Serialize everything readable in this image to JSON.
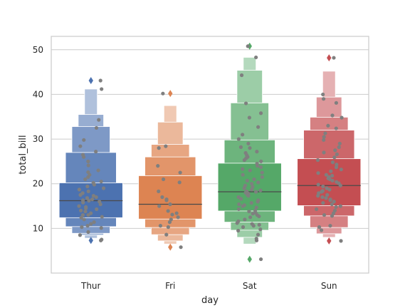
{
  "chart_data": {
    "type": "boxen",
    "xlabel": "day",
    "ylabel": "total_bill",
    "ylim": [
      0,
      53
    ],
    "yticks": [
      10,
      20,
      30,
      40,
      50
    ],
    "grid": "horizontal",
    "categories": [
      "Thur",
      "Fri",
      "Sat",
      "Sun"
    ],
    "colors": [
      "#4C72B0",
      "#DD8452",
      "#55A868",
      "#C44E52"
    ],
    "point_color": "#7f7f7f",
    "groups": [
      {
        "category": "Thur",
        "median": 16.2,
        "boxes": [
          {
            "low": 12.4,
            "high": 20.2
          },
          {
            "low": 10.4,
            "high": 27.0
          },
          {
            "low": 8.9,
            "high": 32.8
          },
          {
            "low": 8.5,
            "high": 35.5
          },
          {
            "low": 7.8,
            "high": 41.2
          }
        ],
        "outliers": [
          7.3,
          43.1
        ],
        "points": [
          7.3,
          7.5,
          8.5,
          9.2,
          10.1,
          10.3,
          10.6,
          11.0,
          11.4,
          12.0,
          12.4,
          12.6,
          13.0,
          13.0,
          13.4,
          13.8,
          14.0,
          14.3,
          14.5,
          14.8,
          15.0,
          15.4,
          15.8,
          16.0,
          16.2,
          16.3,
          16.5,
          16.8,
          17.0,
          17.3,
          17.5,
          17.9,
          18.3,
          18.7,
          19.0,
          19.4,
          19.8,
          20.2,
          20.5,
          21.0,
          21.5,
          22.0,
          22.6,
          23.0,
          24.1,
          25.0,
          26.0,
          26.5,
          27.2,
          28.4,
          29.8,
          32.5,
          34.3,
          41.2,
          43.1
        ]
      },
      {
        "category": "Fri",
        "median": 15.4,
        "boxes": [
          {
            "low": 12.1,
            "high": 21.8
          },
          {
            "low": 10.2,
            "high": 26.0
          },
          {
            "low": 8.6,
            "high": 28.8
          },
          {
            "low": 7.2,
            "high": 33.8
          },
          {
            "low": 6.5,
            "high": 37.5
          }
        ],
        "outliers": [
          5.8,
          40.2
        ],
        "points": [
          5.8,
          8.6,
          10.3,
          10.6,
          11.4,
          12.0,
          12.5,
          13.1,
          13.4,
          13.9,
          15.0,
          15.4,
          16.3,
          16.5,
          17.0,
          18.3,
          20.3,
          21.0,
          22.5,
          24.0,
          28.0,
          28.4,
          40.2
        ]
      },
      {
        "category": "Sat",
        "median": 18.2,
        "boxes": [
          {
            "low": 13.9,
            "high": 24.6
          },
          {
            "low": 11.4,
            "high": 29.8
          },
          {
            "low": 9.6,
            "high": 38.1
          },
          {
            "low": 8.0,
            "high": 45.4
          },
          {
            "low": 6.5,
            "high": 48.3
          }
        ],
        "outliers": [
          3.1,
          50.8
        ],
        "points": [
          3.1,
          7.3,
          7.7,
          8.6,
          9.5,
          9.8,
          10.3,
          10.6,
          10.8,
          11.0,
          11.2,
          11.6,
          12.0,
          12.5,
          12.7,
          13.0,
          13.3,
          13.5,
          13.8,
          14.0,
          14.3,
          14.7,
          15.0,
          15.2,
          15.4,
          15.7,
          16.0,
          16.3,
          16.6,
          17.0,
          17.3,
          17.5,
          17.8,
          18.0,
          18.2,
          18.3,
          18.5,
          18.7,
          19.0,
          19.3,
          19.6,
          20.0,
          20.3,
          20.7,
          21.0,
          21.5,
          22.0,
          22.5,
          23.0,
          23.3,
          23.7,
          24.0,
          24.5,
          25.0,
          25.3,
          25.7,
          26.0,
          26.4,
          26.9,
          27.2,
          28.0,
          28.2,
          29.0,
          30.0,
          31.0,
          32.7,
          34.8,
          35.8,
          38.0,
          44.3,
          48.3,
          50.8
        ]
      },
      {
        "category": "Sun",
        "median": 19.6,
        "boxes": [
          {
            "low": 15.1,
            "high": 25.6
          },
          {
            "low": 12.8,
            "high": 32.0
          },
          {
            "low": 10.2,
            "high": 34.9
          },
          {
            "low": 8.8,
            "high": 39.4
          },
          {
            "low": 8.0,
            "high": 45.2
          }
        ],
        "outliers": [
          7.2,
          48.2
        ],
        "points": [
          7.2,
          9.6,
          10.3,
          10.6,
          12.8,
          13.0,
          13.4,
          14.0,
          14.3,
          14.8,
          15.0,
          15.4,
          15.7,
          16.0,
          16.3,
          16.5,
          16.8,
          17.0,
          17.3,
          17.5,
          17.9,
          18.2,
          18.4,
          18.7,
          19.0,
          19.4,
          19.6,
          19.8,
          20.1,
          20.4,
          20.7,
          21.0,
          21.2,
          21.5,
          21.8,
          22.0,
          22.4,
          22.8,
          23.2,
          23.7,
          24.3,
          24.8,
          25.3,
          25.9,
          26.6,
          27.0,
          27.5,
          28.2,
          29.0,
          29.8,
          30.5,
          31.3,
          32.4,
          33.0,
          34.8,
          35.3,
          38.1,
          39.0,
          40.0,
          48.2
        ]
      }
    ]
  }
}
